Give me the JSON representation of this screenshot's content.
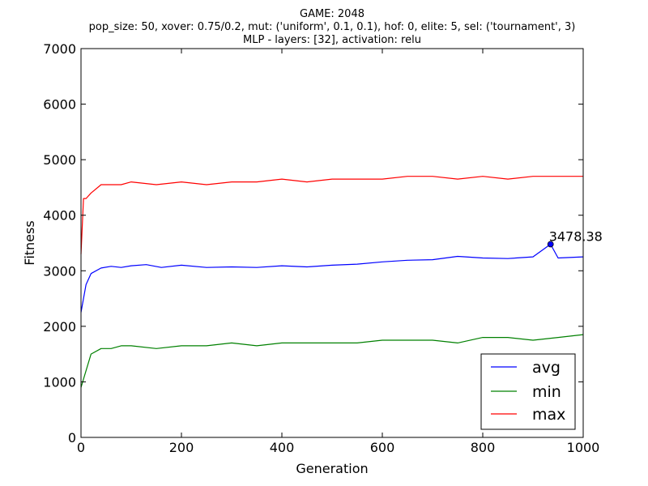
{
  "chart_data": {
    "type": "line",
    "title_lines": [
      "GAME: 2048",
      "pop_size: 50, xover: 0.75/0.2, mut: ('uniform', 0.1, 0.1), hof: 0, elite: 5, sel: ('tournament', 3)",
      "MLP - layers: [32], activation: relu"
    ],
    "xlabel": "Generation",
    "ylabel": "Fitness",
    "xlim": [
      0,
      1000
    ],
    "ylim": [
      0,
      7000
    ],
    "xticks": [
      0,
      200,
      400,
      600,
      800,
      1000
    ],
    "yticks": [
      0,
      1000,
      2000,
      3000,
      4000,
      5000,
      6000,
      7000
    ],
    "grid": false,
    "legend_position": "lower-right",
    "annotation": {
      "label": "3478.38",
      "x": 935,
      "y": 3478.38
    },
    "series": [
      {
        "name": "avg",
        "color": "#0000ff",
        "x": [
          0,
          10,
          20,
          40,
          60,
          80,
          100,
          130,
          160,
          200,
          250,
          300,
          350,
          400,
          450,
          500,
          550,
          600,
          650,
          700,
          750,
          800,
          850,
          900,
          935,
          950,
          1000
        ],
        "y": [
          2250,
          2750,
          2950,
          3050,
          3080,
          3060,
          3090,
          3110,
          3060,
          3100,
          3060,
          3070,
          3060,
          3090,
          3070,
          3100,
          3120,
          3160,
          3190,
          3200,
          3260,
          3230,
          3220,
          3250,
          3478.38,
          3230,
          3250
        ]
      },
      {
        "name": "min",
        "color": "#008000",
        "x": [
          0,
          10,
          20,
          40,
          60,
          80,
          100,
          150,
          200,
          250,
          300,
          350,
          400,
          450,
          500,
          550,
          600,
          650,
          700,
          750,
          800,
          850,
          900,
          950,
          1000
        ],
        "y": [
          900,
          1200,
          1500,
          1600,
          1600,
          1650,
          1650,
          1600,
          1650,
          1650,
          1700,
          1650,
          1700,
          1700,
          1700,
          1700,
          1750,
          1750,
          1750,
          1700,
          1800,
          1800,
          1750,
          1800,
          1850
        ]
      },
      {
        "name": "max",
        "color": "#ff0000",
        "x": [
          0,
          5,
          10,
          20,
          40,
          60,
          80,
          100,
          150,
          200,
          250,
          300,
          350,
          400,
          450,
          500,
          550,
          600,
          650,
          700,
          750,
          800,
          850,
          900,
          950,
          1000
        ],
        "y": [
          3300,
          4300,
          4300,
          4400,
          4550,
          4550,
          4550,
          4600,
          4550,
          4600,
          4550,
          4600,
          4600,
          4650,
          4600,
          4650,
          4650,
          4650,
          4700,
          4700,
          4650,
          4700,
          4650,
          4700,
          4700,
          4700
        ]
      }
    ]
  }
}
